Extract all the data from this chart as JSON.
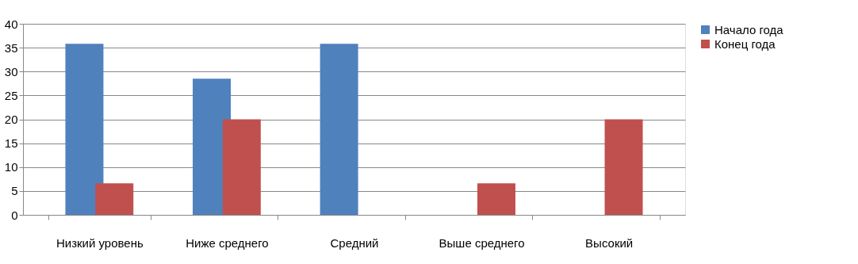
{
  "chart_data": {
    "type": "bar",
    "categories": [
      "Низкий уровень",
      "Ниже среднего",
      "Средний",
      "Выше среднего",
      "Высокий"
    ],
    "series": [
      {
        "name": "Начало года",
        "color": "#4f81bd",
        "values": [
          35.8,
          28.5,
          35.8,
          0,
          0
        ]
      },
      {
        "name": "Конец года",
        "color": "#c0504d",
        "values": [
          6.6,
          20,
          0,
          6.6,
          20
        ]
      }
    ],
    "ylim": [
      0,
      40
    ],
    "yticks": [
      0,
      5,
      10,
      15,
      20,
      25,
      30,
      35,
      40
    ],
    "grid": "y",
    "legend": "right"
  }
}
